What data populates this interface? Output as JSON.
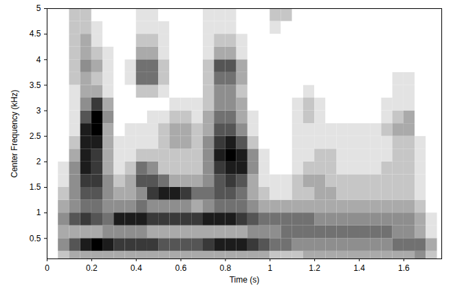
{
  "chart_data": {
    "type": "heatmap",
    "x_label": "Time (s)",
    "y_label": "Center Frequency (kHz)",
    "xlim": [
      0,
      1.77
    ],
    "ylim": [
      0.1,
      5
    ],
    "xticks": [
      0,
      0.2,
      0.4,
      0.6,
      0.8,
      1,
      1.2,
      1.4,
      1.6
    ],
    "yticks": [
      0.5,
      1,
      1.5,
      2,
      2.5,
      3,
      3.5,
      4,
      4.5,
      5
    ],
    "color": [
      "#ffffff",
      "#000000"
    ],
    "x_bins": [
      0.05,
      0.1,
      0.15,
      0.2,
      0.25,
      0.3,
      0.35,
      0.4,
      0.45,
      0.5,
      0.55,
      0.6,
      0.65,
      0.7,
      0.75,
      0.8,
      0.85,
      0.9,
      0.95,
      1,
      1.05,
      1.1,
      1.15,
      1.2,
      1.25,
      1.3,
      1.35,
      1.4,
      1.45,
      1.5,
      1.55,
      1.6,
      1.65,
      1.7,
      1.75
    ],
    "y_bins": [
      0.1,
      0.25,
      0.5,
      0.75,
      1,
      1.25,
      1.5,
      1.75,
      2,
      2.25,
      2.5,
      2.75,
      3,
      3.25,
      3.5,
      3.75,
      4,
      4.25,
      4.5,
      4.75,
      5
    ],
    "values": [
      [
        2,
        3,
        3,
        3,
        3,
        3,
        3,
        3,
        3,
        3,
        3,
        3,
        3,
        3,
        3,
        3,
        3,
        3,
        3,
        2,
        2,
        2,
        3,
        3,
        3,
        3,
        3,
        3,
        3,
        3,
        3,
        3,
        4,
        2
      ],
      [
        4,
        6,
        8,
        9,
        8,
        7,
        7,
        7,
        7,
        6,
        6,
        6,
        6,
        7,
        8,
        8,
        8,
        7,
        6,
        5,
        5,
        4,
        4,
        4,
        4,
        4,
        4,
        4,
        4,
        4,
        5,
        5,
        5,
        3
      ],
      [
        3,
        3,
        3,
        3,
        4,
        4,
        4,
        4,
        3,
        3,
        3,
        3,
        3,
        3,
        3,
        3,
        3,
        4,
        4,
        4,
        5,
        5,
        5,
        5,
        5,
        5,
        5,
        5,
        5,
        5,
        4,
        4,
        3,
        1
      ],
      [
        4,
        6,
        7,
        6,
        5,
        8,
        8,
        8,
        7,
        7,
        7,
        7,
        7,
        8,
        8,
        8,
        7,
        6,
        5,
        5,
        5,
        5,
        5,
        4,
        4,
        4,
        4,
        4,
        4,
        4,
        4,
        4,
        3,
        1
      ],
      [
        3,
        4,
        5,
        5,
        4,
        4,
        4,
        5,
        4,
        4,
        4,
        4,
        3,
        4,
        5,
        5,
        5,
        4,
        3,
        3,
        3,
        3,
        3,
        3,
        3,
        3,
        3,
        3,
        3,
        3,
        3,
        3,
        2,
        0
      ],
      [
        2,
        4,
        6,
        6,
        4,
        3,
        3,
        4,
        7,
        8,
        8,
        7,
        5,
        5,
        6,
        6,
        5,
        3,
        2,
        1,
        1,
        2,
        2,
        3,
        3,
        2,
        2,
        2,
        2,
        2,
        2,
        2,
        1,
        0
      ],
      [
        1,
        4,
        7,
        7,
        4,
        2,
        3,
        6,
        6,
        5,
        3,
        3,
        3,
        4,
        6,
        7,
        6,
        3,
        1,
        1,
        1,
        2,
        3,
        3,
        2,
        2,
        2,
        2,
        2,
        2,
        2,
        2,
        1,
        0
      ],
      [
        1,
        4,
        8,
        7,
        3,
        1,
        2,
        5,
        4,
        2,
        2,
        2,
        2,
        4,
        7,
        8,
        8,
        4,
        1,
        0,
        0,
        1,
        2,
        2,
        2,
        1,
        1,
        1,
        1,
        2,
        2,
        2,
        1,
        0
      ],
      [
        0,
        3,
        8,
        7,
        3,
        1,
        1,
        2,
        2,
        2,
        2,
        2,
        2,
        4,
        8,
        9,
        8,
        4,
        1,
        0,
        0,
        1,
        1,
        2,
        2,
        1,
        1,
        1,
        1,
        1,
        2,
        2,
        1,
        0
      ],
      [
        0,
        2,
        8,
        8,
        3,
        1,
        1,
        1,
        1,
        2,
        3,
        3,
        2,
        4,
        7,
        8,
        6,
        2,
        0,
        0,
        0,
        1,
        1,
        1,
        1,
        1,
        1,
        1,
        1,
        1,
        2,
        2,
        1,
        0
      ],
      [
        0,
        1,
        8,
        9,
        3,
        0,
        1,
        1,
        1,
        2,
        3,
        3,
        2,
        3,
        6,
        6,
        4,
        1,
        0,
        0,
        0,
        1,
        1,
        1,
        1,
        1,
        1,
        1,
        1,
        2,
        3,
        3,
        0,
        0
      ],
      [
        0,
        1,
        6,
        9,
        4,
        0,
        0,
        0,
        1,
        1,
        2,
        2,
        1,
        3,
        5,
        5,
        3,
        1,
        0,
        0,
        0,
        1,
        2,
        1,
        0,
        0,
        0,
        0,
        0,
        1,
        2,
        3,
        0,
        0
      ],
      [
        0,
        1,
        4,
        7,
        3,
        0,
        0,
        0,
        0,
        0,
        1,
        1,
        1,
        2,
        4,
        4,
        3,
        0,
        0,
        0,
        0,
        1,
        2,
        1,
        0,
        0,
        0,
        0,
        0,
        1,
        1,
        1,
        0,
        0
      ],
      [
        0,
        1,
        3,
        3,
        1,
        0,
        0,
        2,
        2,
        1,
        0,
        0,
        0,
        2,
        4,
        4,
        2,
        0,
        0,
        0,
        0,
        0,
        1,
        0,
        0,
        0,
        0,
        0,
        0,
        0,
        1,
        1,
        0,
        0
      ],
      [
        0,
        2,
        3,
        2,
        1,
        0,
        1,
        5,
        5,
        2,
        0,
        0,
        0,
        2,
        5,
        5,
        3,
        0,
        0,
        0,
        0,
        0,
        0,
        0,
        0,
        0,
        0,
        0,
        0,
        0,
        1,
        1,
        0,
        0
      ],
      [
        0,
        2,
        4,
        3,
        1,
        0,
        1,
        5,
        5,
        2,
        0,
        0,
        0,
        2,
        6,
        6,
        3,
        0,
        0,
        0,
        0,
        0,
        0,
        0,
        0,
        0,
        0,
        0,
        0,
        0,
        0,
        0,
        0,
        0
      ],
      [
        0,
        2,
        3,
        2,
        1,
        0,
        0,
        3,
        3,
        1,
        0,
        0,
        0,
        1,
        3,
        3,
        1,
        0,
        0,
        0,
        0,
        0,
        0,
        0,
        0,
        0,
        0,
        0,
        0,
        0,
        0,
        0,
        0,
        0
      ],
      [
        0,
        2,
        3,
        1,
        0,
        0,
        0,
        2,
        2,
        1,
        0,
        0,
        0,
        1,
        2,
        2,
        1,
        0,
        0,
        0,
        0,
        0,
        0,
        0,
        0,
        0,
        0,
        0,
        0,
        0,
        0,
        0,
        0,
        0
      ],
      [
        0,
        2,
        2,
        1,
        0,
        0,
        0,
        1,
        1,
        1,
        0,
        0,
        0,
        1,
        1,
        1,
        0,
        0,
        0,
        1,
        0,
        0,
        0,
        0,
        0,
        0,
        0,
        0,
        0,
        0,
        0,
        0,
        0,
        0
      ],
      [
        0,
        2,
        2,
        0,
        0,
        0,
        0,
        1,
        1,
        0,
        0,
        0,
        0,
        1,
        1,
        1,
        0,
        0,
        0,
        2,
        2,
        0,
        0,
        0,
        0,
        0,
        0,
        0,
        0,
        0,
        0,
        0,
        0,
        0
      ]
    ]
  }
}
